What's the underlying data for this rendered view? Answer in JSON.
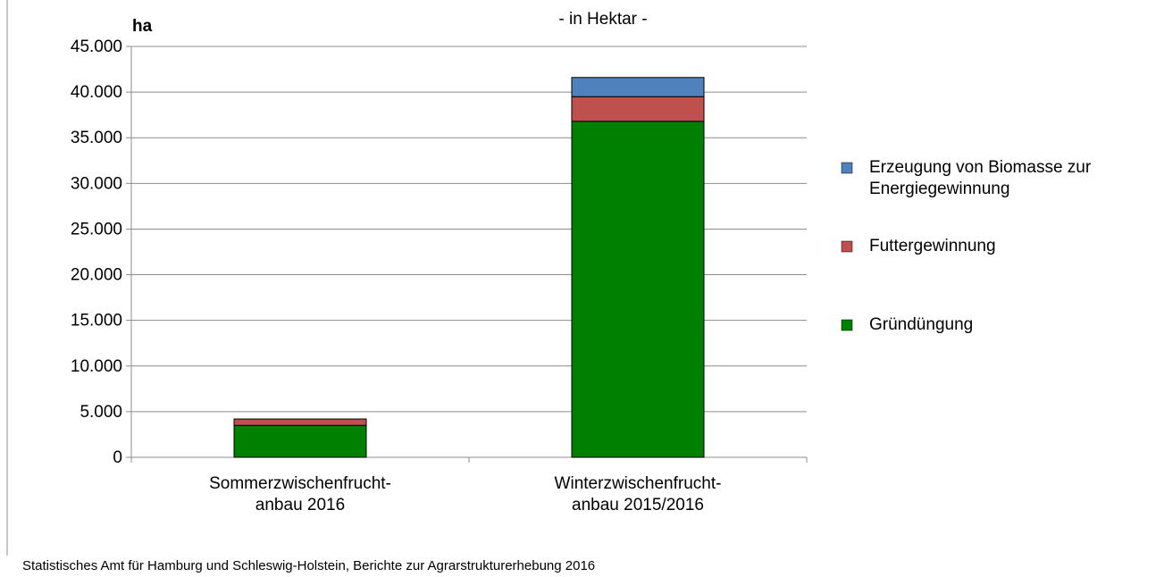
{
  "chart_data": {
    "type": "stacked_bar",
    "title": "- in Hektar -",
    "y_axis_label": "ha",
    "source": "Statistisches Amt für Hamburg und Schleswig-Holstein,  Berichte zur Agrarstrukturerhebung  2016",
    "categories": [
      "Sommerzwischenfrucht-\nanbau 2016",
      "Winterzwischenfrucht-\nanbau 2015/2016"
    ],
    "series": [
      {
        "name": "Gründüngung",
        "color": "#008000",
        "values": [
          3500,
          36800
        ]
      },
      {
        "name": "Futtergewinnung",
        "color": "#c0504d",
        "values": [
          700,
          2700
        ]
      },
      {
        "name": "Erzeugung von Biomasse zur\nEnergiegewinnung",
        "color": "#4f81bd",
        "values": [
          0,
          2100
        ]
      }
    ],
    "ylim": [
      0,
      45000
    ],
    "yticks": [
      0,
      {
        "value": 5000,
        "label": "5.000"
      },
      {
        "value": 10000,
        "label": "10.000"
      },
      {
        "value": 15000,
        "label": "15.000"
      },
      {
        "value": 20000,
        "label": "20.000"
      },
      {
        "value": 25000,
        "label": "25.000"
      },
      {
        "value": 30000,
        "label": "30.000"
      },
      {
        "value": 35000,
        "label": "35.000"
      },
      {
        "value": 40000,
        "label": "40.000"
      },
      {
        "value": 45000,
        "label": "45.000"
      }
    ],
    "grid": true,
    "legend": "right"
  }
}
